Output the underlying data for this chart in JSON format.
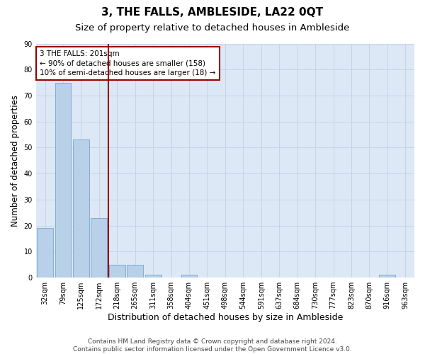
{
  "title": "3, THE FALLS, AMBLESIDE, LA22 0QT",
  "subtitle": "Size of property relative to detached houses in Ambleside",
  "xlabel": "Distribution of detached houses by size in Ambleside",
  "ylabel": "Number of detached properties",
  "bar_labels": [
    "32sqm",
    "79sqm",
    "125sqm",
    "172sqm",
    "218sqm",
    "265sqm",
    "311sqm",
    "358sqm",
    "404sqm",
    "451sqm",
    "498sqm",
    "544sqm",
    "591sqm",
    "637sqm",
    "684sqm",
    "730sqm",
    "777sqm",
    "823sqm",
    "870sqm",
    "916sqm",
    "963sqm"
  ],
  "bar_values": [
    19,
    75,
    53,
    23,
    5,
    5,
    1,
    0,
    1,
    0,
    0,
    0,
    0,
    0,
    0,
    0,
    0,
    0,
    0,
    1,
    0
  ],
  "bar_color": "#b8d0e8",
  "bar_edge_color": "#6699cc",
  "vline_x": 3.5,
  "vline_color": "#990000",
  "annotation_text": "3 THE FALLS: 201sqm\n← 90% of detached houses are smaller (158)\n10% of semi-detached houses are larger (18) →",
  "annotation_box_color": "#990000",
  "ylim": [
    0,
    90
  ],
  "yticks": [
    0,
    10,
    20,
    30,
    40,
    50,
    60,
    70,
    80,
    90
  ],
  "grid_color": "#c5d5e5",
  "background_color": "#dce8f5",
  "footer_text": "Contains HM Land Registry data © Crown copyright and database right 2024.\nContains public sector information licensed under the Open Government Licence v3.0.",
  "title_fontsize": 11,
  "subtitle_fontsize": 9.5,
  "xlabel_fontsize": 9,
  "ylabel_fontsize": 8.5,
  "annotation_fontsize": 7.5,
  "footer_fontsize": 6.5,
  "tick_fontsize": 7
}
